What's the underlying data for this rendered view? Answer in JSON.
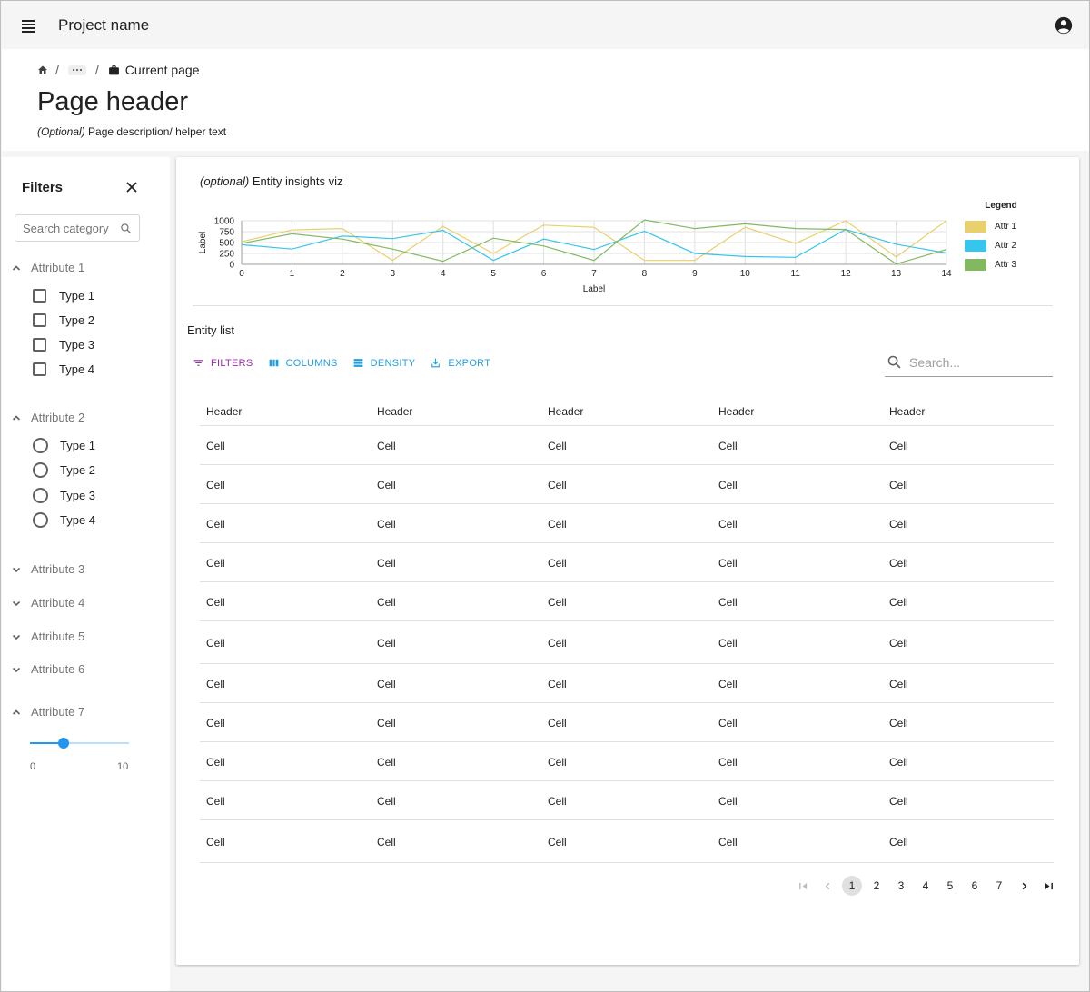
{
  "app": {
    "title": "Project name"
  },
  "breadcrumb": {
    "separator": "/",
    "current": "Current page"
  },
  "page": {
    "title": "Page header",
    "description_optional": "(Optional)",
    "description_text": " Page description/ helper text"
  },
  "filters": {
    "title": "Filters",
    "search_placeholder": "Search category",
    "attr1": {
      "label": "Attribute 1",
      "options": [
        "Type 1",
        "Type 2",
        "Type 3",
        "Type 4"
      ]
    },
    "attr2": {
      "label": "Attribute 2",
      "options": [
        "Type 1",
        "Type 2",
        "Type 3",
        "Type 4"
      ]
    },
    "collapsed": [
      "Attribute 3",
      "Attribute 4",
      "Attribute 5",
      "Attribute 6"
    ],
    "attr7": {
      "label": "Attribute 7",
      "min": "0",
      "max": "10",
      "value": 3.4
    }
  },
  "viz": {
    "title_optional": "(optional)",
    "title_text": " Entity insights viz"
  },
  "chart_data": {
    "type": "line",
    "x": [
      0,
      1,
      2,
      3,
      4,
      5,
      6,
      7,
      8,
      9,
      10,
      11,
      12,
      13,
      14
    ],
    "xlabel": "Label",
    "ylabel": "Label",
    "ylim": [
      0,
      1000
    ],
    "yticks": [
      "1000",
      "750",
      "500",
      "250",
      "0"
    ],
    "grid": true,
    "legend_title": "Legend",
    "legend_position": "right",
    "series": [
      {
        "name": "Attr 1",
        "color": "#e8d06c",
        "values": [
          520,
          790,
          820,
          90,
          870,
          250,
          900,
          850,
          90,
          90,
          850,
          480,
          1000,
          170,
          1000
        ]
      },
      {
        "name": "Attr 2",
        "color": "#36c5ec",
        "values": [
          450,
          350,
          650,
          590,
          780,
          90,
          580,
          340,
          760,
          250,
          180,
          160,
          800,
          460,
          260
        ]
      },
      {
        "name": "Attr 3",
        "color": "#82b960",
        "values": [
          480,
          700,
          580,
          350,
          70,
          600,
          420,
          90,
          1020,
          820,
          930,
          820,
          800,
          10,
          340
        ]
      }
    ]
  },
  "list": {
    "title": "Entity list",
    "toolbar": {
      "filters": "FILTERS",
      "columns": "COLUMNS",
      "density": "DENSITY",
      "export": "EXPORT"
    },
    "search_placeholder": "Search...",
    "headers": [
      "Header",
      "Header",
      "Header",
      "Header",
      "Header"
    ],
    "rows": [
      [
        "Cell",
        "Cell",
        "Cell",
        "Cell",
        "Cell"
      ],
      [
        "Cell",
        "Cell",
        "Cell",
        "Cell",
        "Cell"
      ],
      [
        "Cell",
        "Cell",
        "Cell",
        "Cell",
        "Cell"
      ],
      [
        "Cell",
        "Cell",
        "Cell",
        "Cell",
        "Cell"
      ],
      [
        "Cell",
        "Cell",
        "Cell",
        "Cell",
        "Cell"
      ],
      [
        "Cell",
        "Cell",
        "Cell",
        "Cell",
        "Cell"
      ],
      [
        "Cell",
        "Cell",
        "Cell",
        "Cell",
        "Cell"
      ],
      [
        "Cell",
        "Cell",
        "Cell",
        "Cell",
        "Cell"
      ],
      [
        "Cell",
        "Cell",
        "Cell",
        "Cell",
        "Cell"
      ],
      [
        "Cell",
        "Cell",
        "Cell",
        "Cell",
        "Cell"
      ],
      [
        "Cell",
        "Cell",
        "Cell",
        "Cell",
        "Cell"
      ]
    ]
  },
  "pagination": {
    "pages": [
      "1",
      "2",
      "3",
      "4",
      "5",
      "6",
      "7"
    ],
    "current": "1"
  },
  "colors": {
    "filters_button": "#9c27b0",
    "toolbar_accent": "#1e9fe0",
    "slider": "#2196f3"
  },
  "icons": {
    "menu": "menu-icon",
    "account": "account-circle-icon",
    "home": "home-icon",
    "briefcase": "briefcase-icon",
    "close": "close-icon",
    "search": "search-icon",
    "chevron_up": "chevron-up-icon",
    "chevron_down": "chevron-down-icon"
  }
}
